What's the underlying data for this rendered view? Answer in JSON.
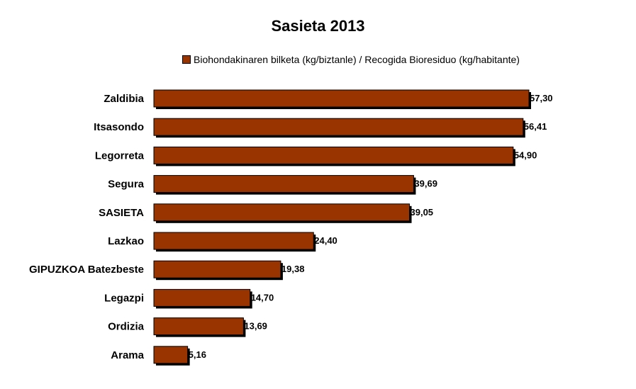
{
  "chart_data": {
    "type": "bar",
    "orientation": "horizontal",
    "title": "Sasieta 2013",
    "categories": [
      "Zaldibia",
      "Itsasondo",
      "Legorreta",
      "Segura",
      "SASIETA",
      "Lazkao",
      "GIPUZKOA Batezbeste",
      "Legazpi",
      "Ordizia",
      "Arama"
    ],
    "series": [
      {
        "name": "Biohondakinaren bilketa (kg/biztanle) / Recogida Bioresiduo (kg/habitante)",
        "values": [
          57.3,
          56.41,
          54.9,
          39.69,
          39.05,
          24.4,
          19.38,
          14.7,
          13.69,
          5.16
        ],
        "labels": [
          "57,30",
          "56,41",
          "54,90",
          "39,69",
          "39,05",
          "24,40",
          "19,38",
          "14,70",
          "13,69",
          "5,16"
        ]
      }
    ],
    "xlim": [
      0,
      57.3
    ],
    "legend_position": "top",
    "grid": false,
    "colors": {
      "bar": "#993300",
      "shadow": "#000000"
    }
  }
}
